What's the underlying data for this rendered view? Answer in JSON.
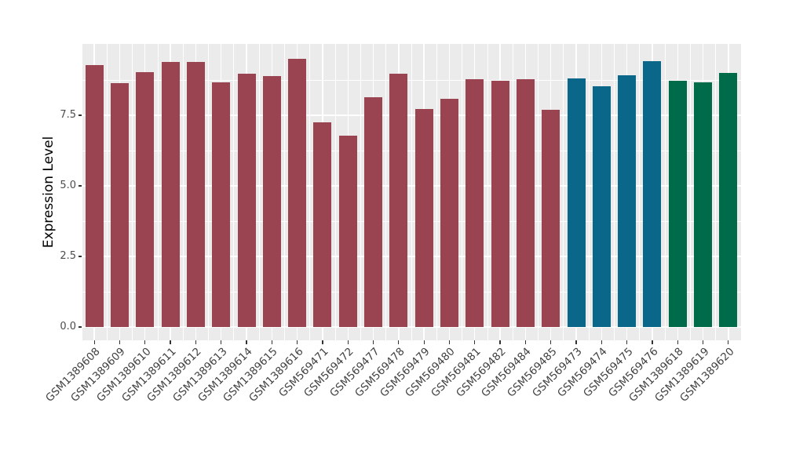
{
  "chart_data": {
    "type": "bar",
    "title": "",
    "xlabel": "",
    "ylabel": "Expression Level",
    "categories": [
      "GSM1389608",
      "GSM1389609",
      "GSM1389610",
      "GSM1389611",
      "GSM1389612",
      "GSM1389613",
      "GSM1389614",
      "GSM1389615",
      "GSM1389616",
      "GSM569471",
      "GSM569472",
      "GSM569477",
      "GSM569478",
      "GSM569479",
      "GSM569480",
      "GSM569481",
      "GSM569482",
      "GSM569484",
      "GSM569485",
      "GSM569473",
      "GSM569474",
      "GSM569475",
      "GSM569476",
      "GSM1389618",
      "GSM1389619",
      "GSM1389620"
    ],
    "values": [
      9.28,
      8.65,
      9.03,
      9.38,
      9.38,
      8.68,
      8.96,
      8.9,
      9.5,
      7.25,
      6.79,
      8.15,
      8.96,
      7.72,
      8.08,
      8.77,
      8.72,
      8.77,
      7.69,
      8.8,
      8.52,
      8.93,
      9.42,
      8.72,
      8.67,
      9.0
    ],
    "groups": [
      "group1",
      "group1",
      "group1",
      "group1",
      "group1",
      "group1",
      "group1",
      "group1",
      "group1",
      "group1",
      "group1",
      "group1",
      "group1",
      "group1",
      "group1",
      "group1",
      "group1",
      "group1",
      "group1",
      "group2",
      "group2",
      "group2",
      "group2",
      "group3",
      "group3",
      "group3"
    ],
    "group_colors": {
      "group1": "#9A4452",
      "group2": "#0A6789",
      "group3": "#006B49"
    },
    "yticks": [
      0.0,
      2.5,
      5.0,
      7.5
    ],
    "ytick_labels": [
      "0.0",
      "2.5",
      "5.0",
      "7.5"
    ],
    "yticks_minor": [
      1.25,
      3.75,
      6.25,
      8.75
    ],
    "ylim": [
      -0.47,
      9.98
    ],
    "grid": true,
    "legend_position": "none",
    "panel_background": "#EBEBEB",
    "grid_color": "#FFFFFF",
    "tick_color": "#333333",
    "axis_text_color": "#4D4D4D"
  }
}
